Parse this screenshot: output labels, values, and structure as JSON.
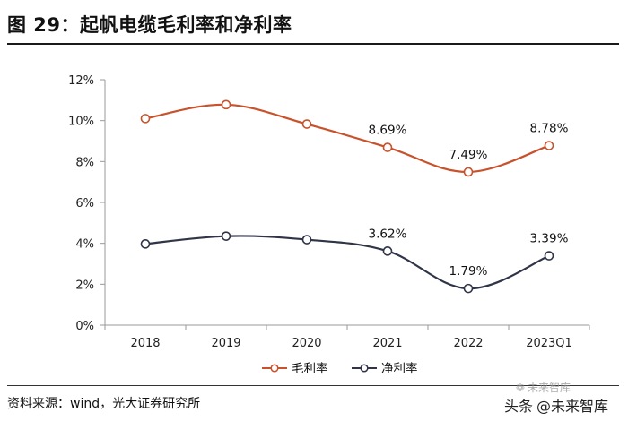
{
  "figure": {
    "title": "图 29：起帆电缆毛利率和净利率",
    "source": "资料来源：wind，光大证券研究所",
    "watermark_prefix": "头条",
    "watermark_name": "@未来智库",
    "watermark_logo_text": "未来智库"
  },
  "colors": {
    "gross": "#C8522C",
    "net": "#2F3447",
    "axis": "#9a9a9a",
    "marker_fill": "#ffffff"
  },
  "chart_data": {
    "type": "line",
    "title": "起帆电缆毛利率和净利率",
    "categories": [
      "2018",
      "2019",
      "2020",
      "2021",
      "2022",
      "2023Q1"
    ],
    "xlabel": "",
    "ylabel": "",
    "ylim": [
      0,
      12
    ],
    "yticks": [
      "0%",
      "2%",
      "4%",
      "6%",
      "8%",
      "10%",
      "12%"
    ],
    "grid": false,
    "legend_position": "bottom",
    "series": [
      {
        "name": "毛利率",
        "values": [
          10.1,
          10.78,
          9.83,
          8.69,
          7.49,
          8.78
        ],
        "labels": [
          "",
          "",
          "",
          "8.69%",
          "7.49%",
          "8.78%"
        ]
      },
      {
        "name": "净利率",
        "values": [
          3.97,
          4.35,
          4.18,
          3.62,
          1.79,
          3.39
        ],
        "labels": [
          "",
          "",
          "",
          "3.62%",
          "1.79%",
          "3.39%"
        ]
      }
    ]
  }
}
